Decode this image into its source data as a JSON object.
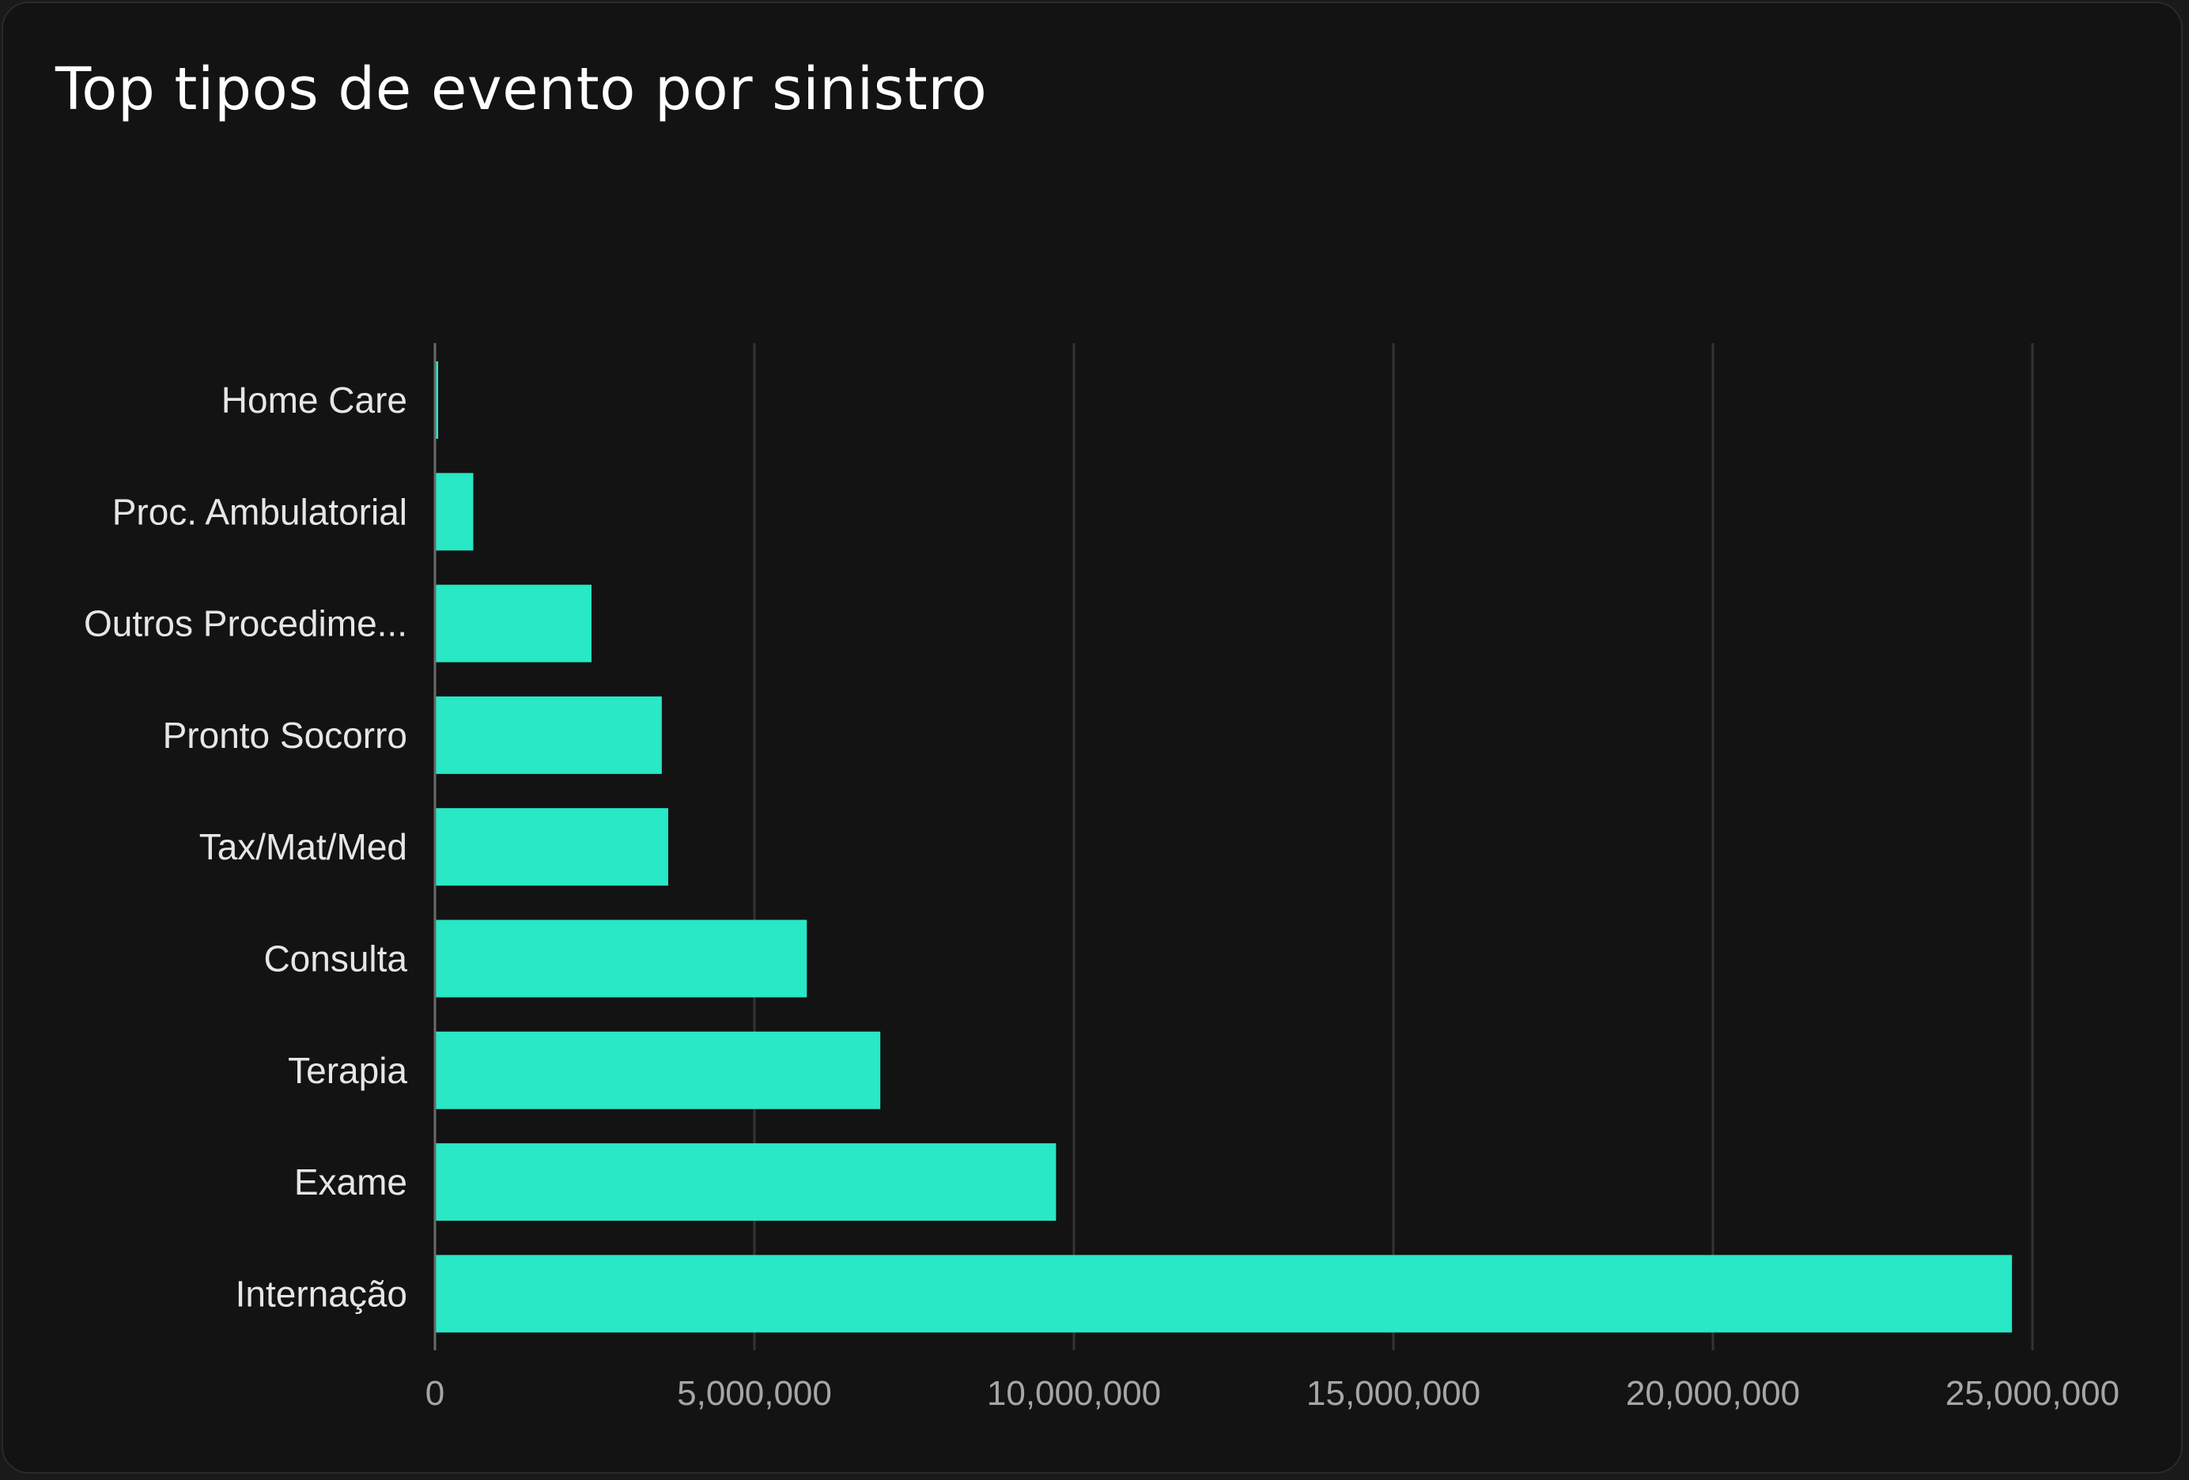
{
  "card": {
    "title": "Top tipos de evento por sinistro"
  },
  "colors": {
    "background": "#131313",
    "bar": "#28e8c6",
    "grid": "#333333",
    "axis": "#6a6a6a",
    "category_text": "#e6e6e6",
    "tick_text": "#a6a6a6"
  },
  "chart_data": {
    "type": "bar",
    "orientation": "horizontal",
    "title": "Top tipos de evento por sinistro",
    "xlabel": "",
    "ylabel": "",
    "categories": [
      "Home Care",
      "Proc. Ambulatorial",
      "Outros Procedime...",
      "Pronto Socorro",
      "Tax/Mat/Med",
      "Consulta",
      "Terapia",
      "Exame",
      "Internação"
    ],
    "values": [
      50000,
      600000,
      2450000,
      3550000,
      3650000,
      5820000,
      6970000,
      9720000,
      24680000
    ],
    "xlim": [
      0,
      25000000
    ],
    "xticks": [
      0,
      5000000,
      10000000,
      15000000,
      20000000,
      25000000
    ],
    "xtick_labels": [
      "0",
      "5,000,000",
      "10,000,000",
      "15,000,000",
      "20,000,000",
      "25,000,000"
    ],
    "grid": "vertical",
    "legend": "none"
  }
}
